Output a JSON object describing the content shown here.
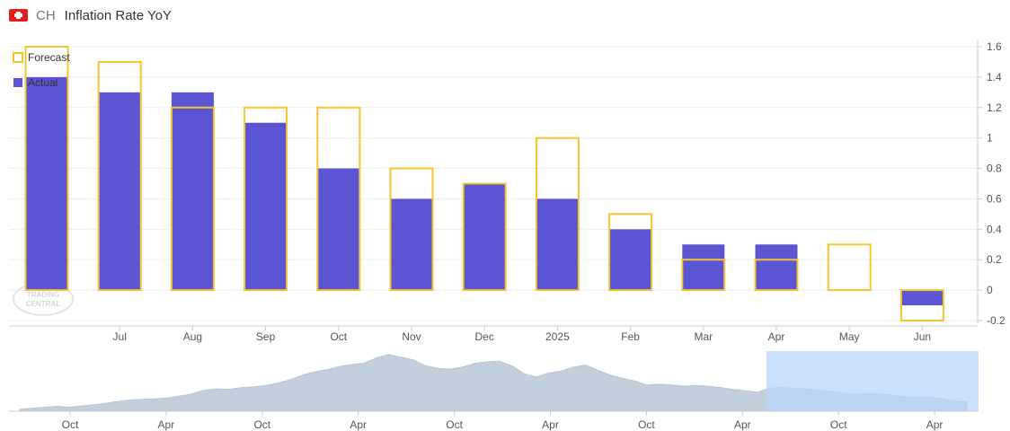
{
  "header": {
    "country_code": "CH",
    "title": "Inflation Rate YoY",
    "flag_icon": "swiss-flag-icon"
  },
  "watermark": {
    "line1": "TRADING",
    "line2": "CENTRAL"
  },
  "colors": {
    "actual": "#5b55d4",
    "forecast": "#f5c530",
    "navigator_fill": "#c2cfdd",
    "navigator_window": "#bad6fb"
  },
  "chart_data": {
    "type": "bar",
    "categories": [
      "",
      "Jul",
      "Aug",
      "Sep",
      "Oct",
      "Nov",
      "Dec",
      "2025",
      "Feb",
      "Mar",
      "Apr",
      "May",
      "Jun"
    ],
    "series": [
      {
        "name": "Actual",
        "values": [
          1.4,
          1.3,
          1.3,
          1.1,
          0.8,
          0.6,
          0.7,
          0.6,
          0.4,
          0.3,
          0.3,
          null,
          -0.1
        ]
      },
      {
        "name": "Forecast",
        "values": [
          1.6,
          1.5,
          1.2,
          1.2,
          1.2,
          0.8,
          0.7,
          1.0,
          0.5,
          0.2,
          0.2,
          0.3,
          -0.2
        ]
      }
    ],
    "y_ticks": [
      "1.6",
      "1.4",
      "1.2",
      "1",
      "0.8",
      "0.6",
      "0.4",
      "0.2",
      "0",
      "-0.2"
    ],
    "ylim": [
      -0.2,
      1.6
    ],
    "legend": [
      "Forecast",
      "Actual"
    ],
    "legend_position": "top-left",
    "y_axis_side": "right",
    "navigator": {
      "x_labels": [
        "Oct",
        "Apr",
        "Oct",
        "Apr",
        "Oct",
        "Apr",
        "Oct",
        "Apr",
        "Oct",
        "Apr"
      ],
      "values": [
        0.3,
        0.45,
        0.6,
        0.75,
        0.6,
        0.8,
        1.0,
        1.2,
        1.5,
        1.7,
        1.8,
        1.9,
        2.0,
        2.3,
        2.6,
        3.2,
        3.4,
        3.3,
        3.6,
        3.7,
        3.9,
        4.3,
        4.8,
        5.5,
        6.0,
        6.3,
        6.8,
        7.1,
        7.3,
        8.1,
        8.6,
        8.2,
        7.8,
        6.9,
        6.5,
        6.4,
        6.7,
        7.3,
        7.5,
        7.6,
        6.9,
        5.7,
        5.2,
        5.8,
        6.1,
        6.7,
        7.0,
        6.2,
        5.5,
        5.0,
        4.6,
        4.0,
        4.1,
        4.0,
        3.8,
        3.9,
        3.8,
        3.6,
        3.3,
        3.1,
        2.9,
        3.5,
        3.6,
        3.5,
        3.4,
        3.2,
        3.0,
        2.7,
        2.6,
        2.7,
        2.6,
        2.4,
        2.2,
        2.1,
        2.1,
        1.9,
        1.5,
        1.4
      ],
      "selected_range": "last 12 months"
    }
  }
}
